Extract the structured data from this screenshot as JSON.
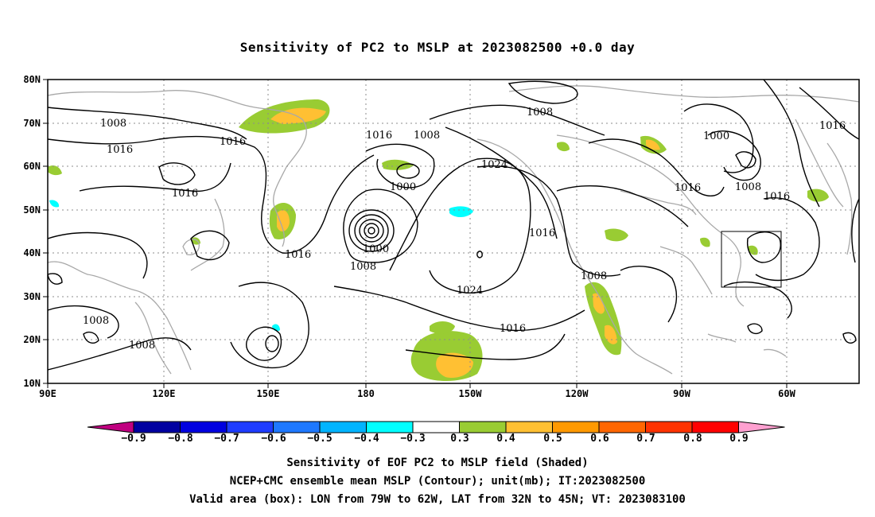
{
  "title": "Sensitivity of PC2 to MSLP at 2023082500 +0.0 day",
  "map": {
    "lon_labels": [
      "90E",
      "120E",
      "150E",
      "180",
      "150W",
      "120W",
      "90W",
      "60W"
    ],
    "lat_labels": [
      "80N",
      "70N",
      "60N",
      "50N",
      "40N",
      "30N",
      "20N",
      "10N"
    ],
    "contour_labels": [
      {
        "text": "1008"
      },
      {
        "text": "1016"
      },
      {
        "text": "1016"
      },
      {
        "text": "1016"
      },
      {
        "text": "1016"
      },
      {
        "text": "1008"
      },
      {
        "text": "1000"
      },
      {
        "text": "1016"
      },
      {
        "text": "1024"
      },
      {
        "text": "1000"
      },
      {
        "text": "1008"
      },
      {
        "text": "1024"
      },
      {
        "text": "1016"
      },
      {
        "text": "1008"
      },
      {
        "text": "1008"
      },
      {
        "text": "1016"
      },
      {
        "text": "1008"
      },
      {
        "text": "1008"
      },
      {
        "text": "1000"
      },
      {
        "text": "1008"
      },
      {
        "text": "1016"
      },
      {
        "text": "1016"
      },
      {
        "text": "1016"
      }
    ],
    "valid_box": {
      "lon_range": [
        "79W",
        "62W"
      ],
      "lat_range": [
        "32N",
        "45N"
      ]
    },
    "colors": {
      "contour": "#000000",
      "coast": "#a8a8a8",
      "grid": "#8c8c8c",
      "pos_03": "#99cc33",
      "pos_04": "#ffc033",
      "neg_04": "#00ffff"
    }
  },
  "colorbar": {
    "labels": [
      "−0.9",
      "−0.8",
      "−0.7",
      "−0.6",
      "−0.5",
      "−0.4",
      "−0.3",
      "0.3",
      "0.4",
      "0.5",
      "0.6",
      "0.7",
      "0.8",
      "0.9"
    ],
    "colors": [
      "#c00080",
      "#0000a0",
      "#0000e0",
      "#1e3cff",
      "#1e78ff",
      "#00b4ff",
      "#00ffff",
      "#ffffff",
      "#99cc33",
      "#ffc033",
      "#ff9900",
      "#ff6600",
      "#ff3300",
      "#ff0000",
      "#ffa0d0"
    ]
  },
  "caption": {
    "line1": "Sensitivity of EOF PC2 to MSLP field (Shaded)",
    "line2": "NCEP+CMC ensemble mean MSLP (Contour); unit(mb); IT:2023082500",
    "line3": "Valid area (box): LON from 79W to 62W, LAT from 32N to 45N; VT: 2023083100"
  }
}
